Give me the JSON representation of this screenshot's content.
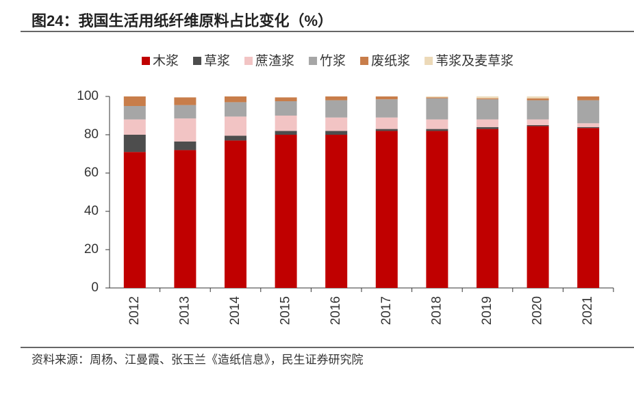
{
  "chart_data": {
    "type": "stacked_bar",
    "title": "图24：我国生活用纸纤维原料占比变化（%）",
    "source": "资料来源：周杨、江曼霞、张玉兰《造纸信息》，民生证券研究院",
    "categories": [
      "2012",
      "2013",
      "2014",
      "2015",
      "2016",
      "2017",
      "2018",
      "2019",
      "2020",
      "2021"
    ],
    "series": [
      {
        "name": "木浆",
        "color": "#c00000",
        "values": [
          71,
          72,
          77,
          80,
          80,
          82,
          82,
          83,
          84.5,
          83.5
        ]
      },
      {
        "name": "草浆",
        "color": "#4d4d4d",
        "values": [
          9,
          4.5,
          2.5,
          2,
          2,
          1,
          1,
          1,
          0.5,
          0.5
        ]
      },
      {
        "name": "蔗渣浆",
        "color": "#f2c4c4",
        "values": [
          8,
          12,
          10,
          8,
          7,
          6,
          5,
          4,
          3,
          2
        ]
      },
      {
        "name": "竹浆",
        "color": "#a6a6a6",
        "values": [
          7,
          7,
          7.5,
          7.5,
          9,
          9.5,
          11,
          10.5,
          10,
          12
        ]
      },
      {
        "name": "废纸浆",
        "color": "#c87d4a",
        "values": [
          5,
          4,
          3,
          2,
          2,
          1.5,
          0.5,
          0.5,
          1,
          2
        ]
      },
      {
        "name": "苇浆及麦草浆",
        "color": "#ecd9b8",
        "values": [
          0,
          0,
          0,
          0,
          0,
          0,
          0.5,
          1,
          1,
          0
        ]
      }
    ],
    "ylim": [
      0,
      100
    ],
    "yticks": [
      0,
      20,
      40,
      60,
      80,
      100
    ],
    "grid": false
  }
}
